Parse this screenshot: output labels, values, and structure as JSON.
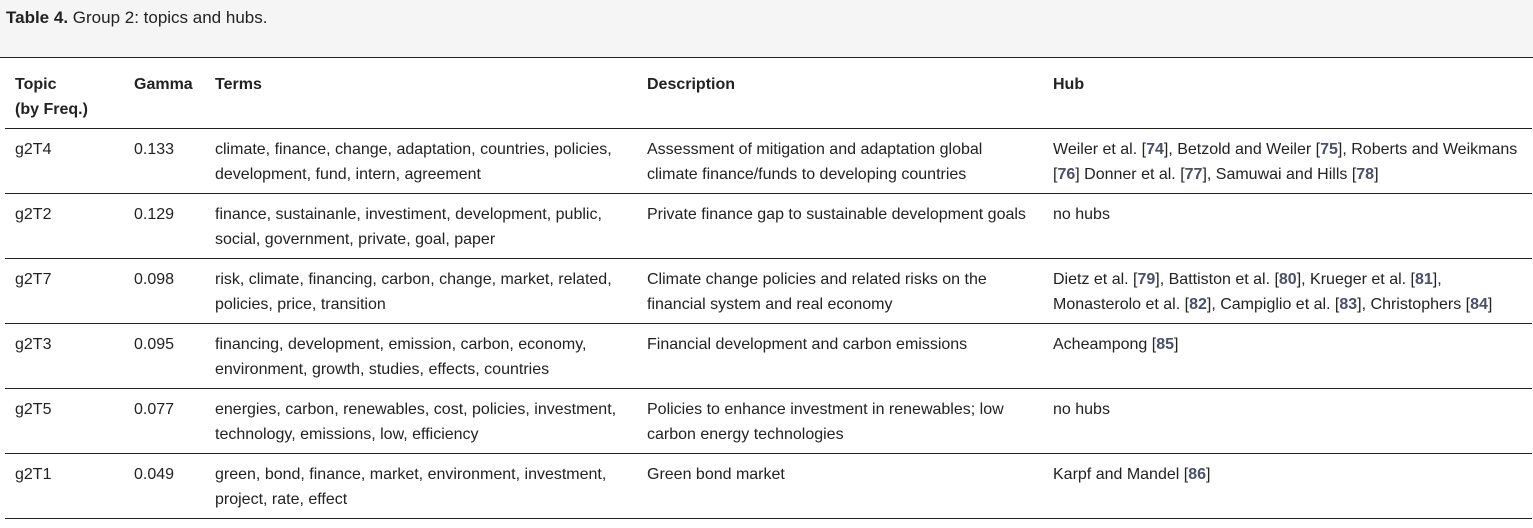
{
  "caption": {
    "label": "Table 4.",
    "text": " Group 2: topics and hubs."
  },
  "headers": {
    "topic_line1": "Topic",
    "topic_line2": "(by Freq.)",
    "gamma": "Gamma",
    "terms": "Terms",
    "description": "Description",
    "hub": "Hub"
  },
  "rows": [
    {
      "topic": "g2T4",
      "gamma": "0.133",
      "terms": "climate, finance, change, adaptation, countries, policies, development, fund, intern, agreement",
      "description": "Assessment of mitigation and adaptation global climate finance/funds to developing countries",
      "hub": [
        {
          "text": "Weiler et al. ["
        },
        {
          "ref": "74"
        },
        {
          "text": "], Betzold and Weiler ["
        },
        {
          "ref": "75"
        },
        {
          "text": "], Roberts and Weikmans ["
        },
        {
          "ref": "76"
        },
        {
          "text": "] Donner et al. ["
        },
        {
          "ref": "77"
        },
        {
          "text": "], Samuwai and Hills ["
        },
        {
          "ref": "78"
        },
        {
          "text": "]"
        }
      ]
    },
    {
      "topic": "g2T2",
      "gamma": "0.129",
      "terms": "finance, sustainanle, investiment, development, public, social, government, private, goal, paper",
      "description": "Private finance gap to sustainable development goals",
      "hub": [
        {
          "text": "no hubs"
        }
      ]
    },
    {
      "topic": "g2T7",
      "gamma": "0.098",
      "terms": "risk, climate, financing, carbon, change, market, related, policies, price, transition",
      "description": "Climate change policies and related risks on the financial system and real economy",
      "hub": [
        {
          "text": "Dietz et al. ["
        },
        {
          "ref": "79"
        },
        {
          "text": "], Battiston et al. ["
        },
        {
          "ref": "80"
        },
        {
          "text": "], Krueger et al. ["
        },
        {
          "ref": "81"
        },
        {
          "text": "], Monasterolo et al. ["
        },
        {
          "ref": "82"
        },
        {
          "text": "], Campiglio et al. ["
        },
        {
          "ref": "83"
        },
        {
          "text": "], Christophers ["
        },
        {
          "ref": "84"
        },
        {
          "text": "]"
        }
      ]
    },
    {
      "topic": "g2T3",
      "gamma": "0.095",
      "terms": "financing, development, emission, carbon, economy, environment, growth, studies, effects, countries",
      "description": "Financial development and carbon emissions",
      "hub": [
        {
          "text": "Acheampong ["
        },
        {
          "ref": "85"
        },
        {
          "text": "]"
        }
      ]
    },
    {
      "topic": "g2T5",
      "gamma": "0.077",
      "terms": "energies, carbon, renewables, cost, policies, investment, technology, emissions, low, efficiency",
      "description": "Policies to enhance investment in renewables; low carbon energy technologies",
      "hub": [
        {
          "text": "no hubs"
        }
      ]
    },
    {
      "topic": "g2T1",
      "gamma": "0.049",
      "terms": "green, bond, finance, market, environment, investment, project, rate, effect",
      "description": "Green bond market",
      "hub": [
        {
          "text": "Karpf and Mandel ["
        },
        {
          "ref": "86"
        },
        {
          "text": "]"
        }
      ]
    }
  ],
  "colors": {
    "reference_link": "#4a5068",
    "caption_background": "#f5f5f5",
    "rule": "#222222"
  }
}
